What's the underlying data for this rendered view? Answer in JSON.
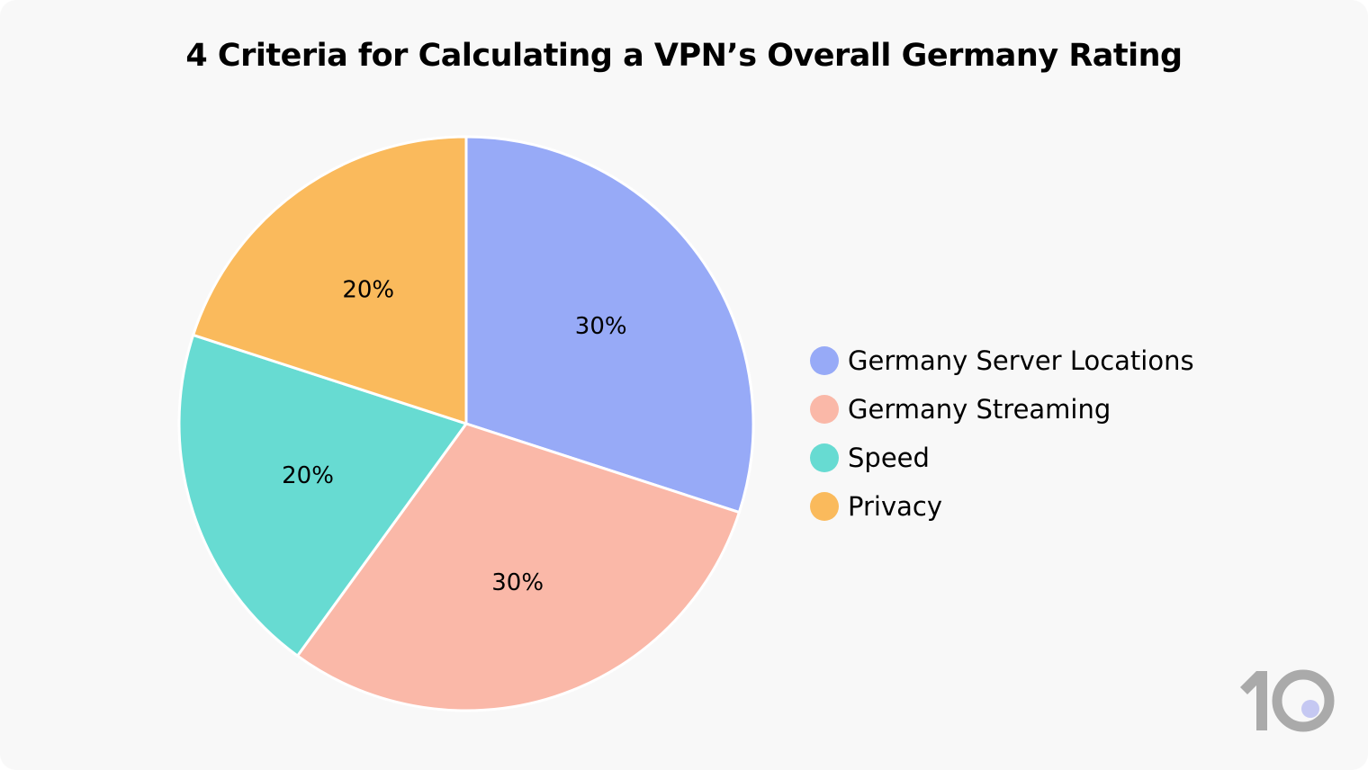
{
  "chart_data": {
    "type": "pie",
    "title": "4 Criteria for Calculating a VPN’s Overall Germany Rating",
    "categories": [
      "Germany Server Locations",
      "Germany Streaming",
      "Speed",
      "Privacy"
    ],
    "values": [
      30,
      30,
      20,
      20
    ],
    "data_labels": [
      "30%",
      "30%",
      "20%",
      "20%"
    ],
    "colors": [
      "#97aaf7",
      "#fab8a8",
      "#67dbd2",
      "#faba5c"
    ],
    "start": "top, clockwise",
    "legend_position": "right"
  },
  "logo": {
    "text": "10",
    "color": "#aaaaaa",
    "dot_color": "#c5c8f2"
  }
}
